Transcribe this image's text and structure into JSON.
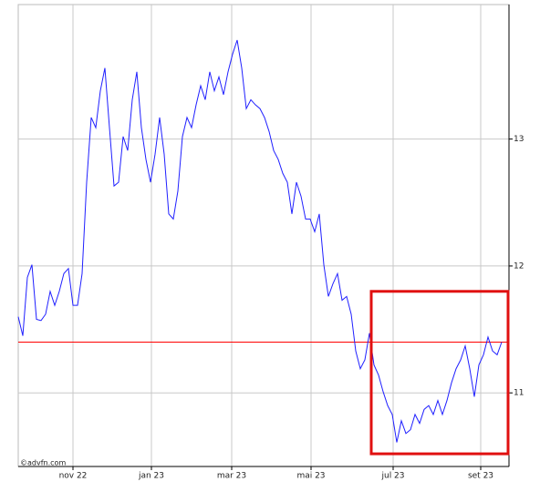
{
  "chart_data": {
    "type": "line",
    "watermark": "©advfn.com",
    "series": [
      {
        "color": "#2020ff",
        "values": [
          11.6,
          11.45,
          11.91,
          12.01,
          11.58,
          11.57,
          11.62,
          11.8,
          11.69,
          11.8,
          11.94,
          11.98,
          11.69,
          11.69,
          11.94,
          12.66,
          13.17,
          13.09,
          13.38,
          13.56,
          13.09,
          12.63,
          12.66,
          13.02,
          12.91,
          13.31,
          13.53,
          13.09,
          12.84,
          12.66,
          12.88,
          13.17,
          12.88,
          12.41,
          12.37,
          12.59,
          13.02,
          13.17,
          13.09,
          13.27,
          13.42,
          13.31,
          13.53,
          13.38,
          13.49,
          13.35,
          13.53,
          13.67,
          13.78,
          13.56,
          13.24,
          13.31,
          13.27,
          13.24,
          13.17,
          13.06,
          12.91,
          12.84,
          12.73,
          12.66,
          12.41,
          12.66,
          12.55,
          12.37,
          12.37,
          12.27,
          12.41,
          12.01,
          11.76,
          11.86,
          11.94,
          11.73,
          11.76,
          11.62,
          11.33,
          11.19,
          11.26,
          11.47,
          11.22,
          11.14,
          11.01,
          10.9,
          10.83,
          10.61,
          10.78,
          10.68,
          10.71,
          10.83,
          10.76,
          10.87,
          10.9,
          10.83,
          10.94,
          10.83,
          10.94,
          11.08,
          11.19,
          11.26,
          11.37,
          11.19,
          10.97,
          11.22,
          11.3,
          11.44,
          11.33,
          11.3,
          11.4
        ]
      }
    ],
    "xlim": [
      0,
      107.6
    ],
    "xticks": [
      {
        "value": 12,
        "label": "nov 22"
      },
      {
        "value": 29.2,
        "label": "jan 23"
      },
      {
        "value": 46.8,
        "label": "mar 23"
      },
      {
        "value": 64.2,
        "label": "mai 23"
      },
      {
        "value": 82.2,
        "label": "jul 23"
      },
      {
        "value": 101.4,
        "label": "set 23"
      }
    ],
    "ylim": [
      10.42,
      14.06
    ],
    "yticks": [
      11,
      12,
      13
    ],
    "grid": true,
    "reference_line": {
      "value": 11.4,
      "color": "#ff0000"
    },
    "highlight": {
      "x": [
        77.4,
        107.4
      ],
      "y": [
        10.52,
        11.8
      ],
      "color": "#e01010"
    }
  }
}
